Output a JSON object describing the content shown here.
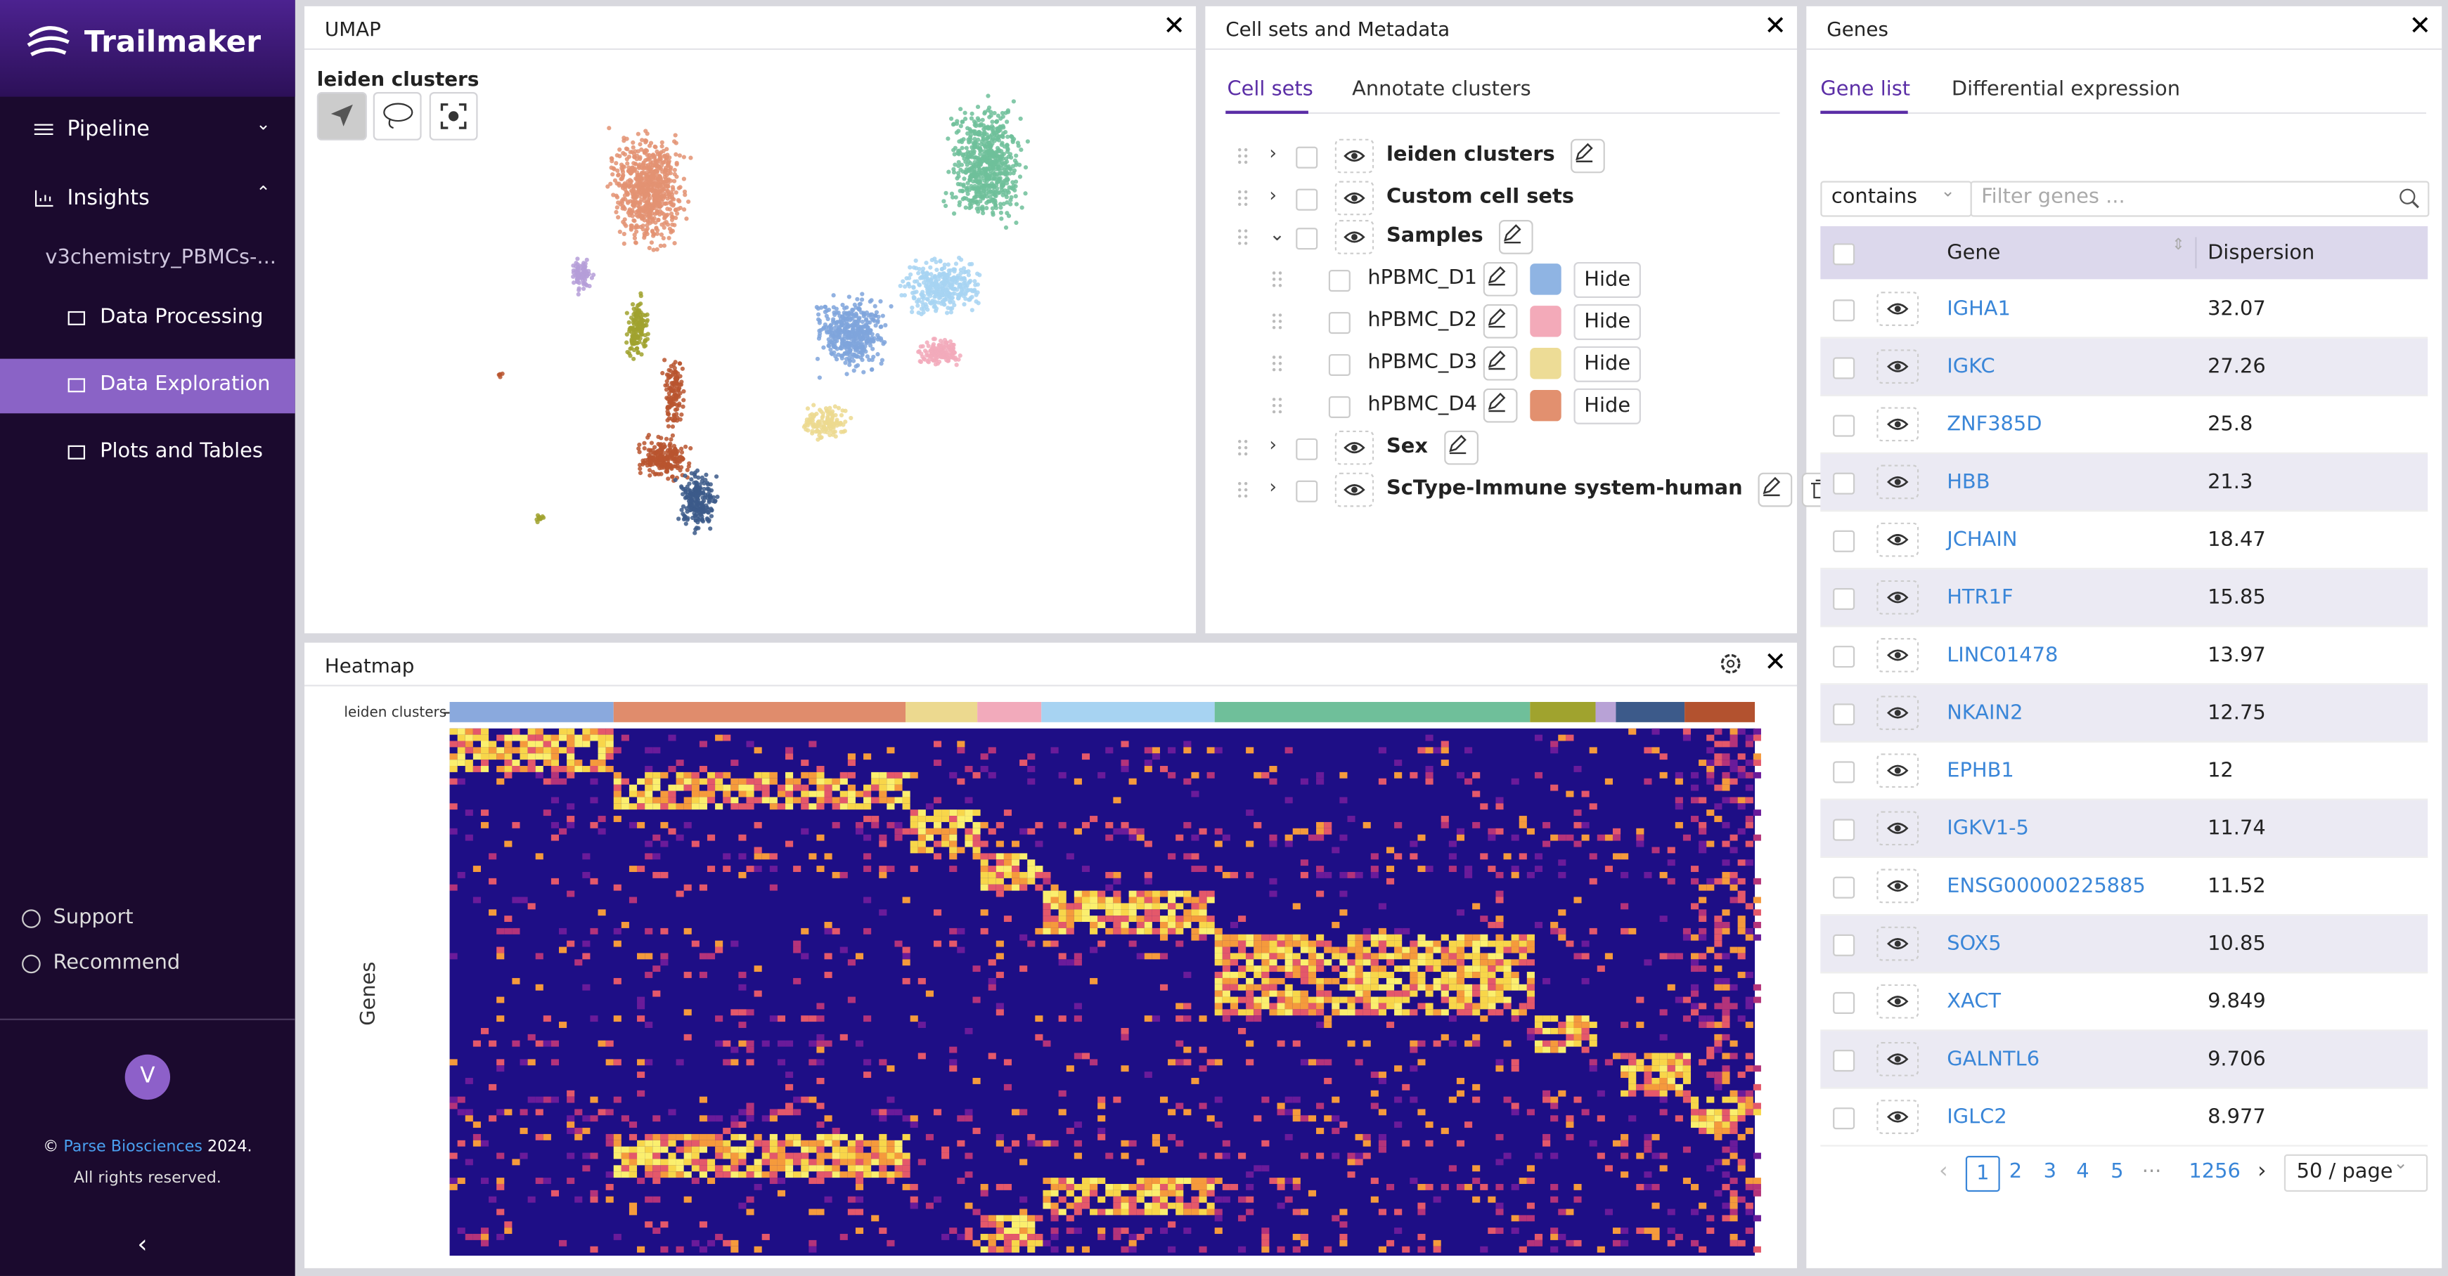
{
  "sidebar": {
    "brand": "Trailmaker",
    "nav": [
      "Pipeline",
      "Insights"
    ],
    "project": "v3chemistry_PBMCs-...",
    "subnav": [
      "Data Processing",
      "Data Exploration",
      "Plots and Tables"
    ],
    "footer_links": [
      "Support",
      "Recommend"
    ],
    "avatar": "V",
    "copyright": {
      "symbol": "©",
      "link": "Parse Biosciences",
      "year": "2024.",
      "rights": "All rights reserved."
    }
  },
  "umap": {
    "title": "UMAP",
    "label": "leiden clusters"
  },
  "cellsets": {
    "title": "Cell sets and Metadata",
    "tabs": [
      "Cell sets",
      "Annotate clusters"
    ],
    "items": [
      {
        "name": "leiden clusters"
      },
      {
        "name": "Custom cell sets"
      },
      {
        "name": "Samples",
        "children": [
          {
            "name": "hPBMC_D1",
            "color": "#8fb4e3",
            "action": "Hide"
          },
          {
            "name": "hPBMC_D2",
            "color": "#f3aab9",
            "action": "Hide"
          },
          {
            "name": "hPBMC_D3",
            "color": "#eddc96",
            "action": "Hide"
          },
          {
            "name": "hPBMC_D4",
            "color": "#e2906f",
            "action": "Hide"
          }
        ]
      },
      {
        "name": "Sex"
      },
      {
        "name": "ScType-Immune system-human"
      }
    ]
  },
  "heatmap": {
    "title": "Heatmap",
    "track_label": "leiden clusters",
    "axis_label": "Genes"
  },
  "genes": {
    "title": "Genes",
    "tabs": [
      "Gene list",
      "Differential expression"
    ],
    "filter_mode": "contains",
    "filter_placeholder": "Filter genes ...",
    "columns": [
      "Gene",
      "Dispersion"
    ],
    "rows": [
      [
        "IGHA1",
        "32.07"
      ],
      [
        "IGKC",
        "27.26"
      ],
      [
        "ZNF385D",
        "25.8"
      ],
      [
        "HBB",
        "21.3"
      ],
      [
        "JCHAIN",
        "18.47"
      ],
      [
        "HTR1F",
        "15.85"
      ],
      [
        "LINC01478",
        "13.97"
      ],
      [
        "NKAIN2",
        "12.75"
      ],
      [
        "EPHB1",
        "12"
      ],
      [
        "IGKV1-5",
        "11.74"
      ],
      [
        "ENSG00000225885",
        "11.52"
      ],
      [
        "SOX5",
        "10.85"
      ],
      [
        "XACT",
        "9.849"
      ],
      [
        "GALNTL6",
        "9.706"
      ],
      [
        "IGLC2",
        "8.977"
      ]
    ],
    "pagination": {
      "pages": [
        "1",
        "2",
        "3",
        "4",
        "5"
      ],
      "ellipsis": "···",
      "last": "1256",
      "page_size": "50 / page"
    }
  }
}
